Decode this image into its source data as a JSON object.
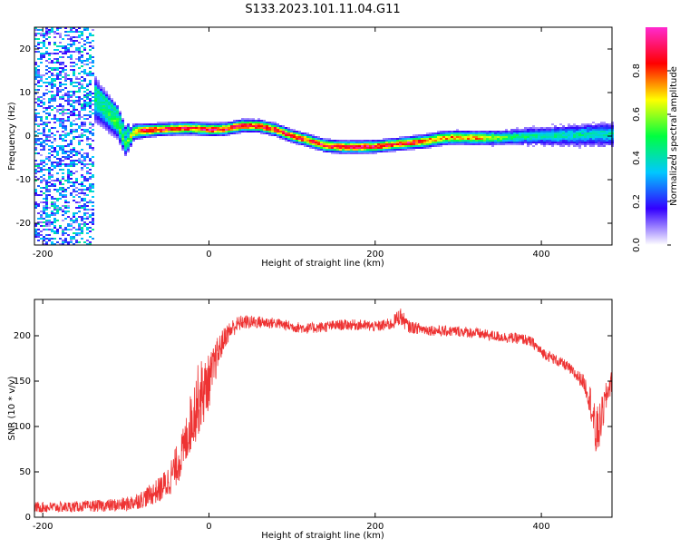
{
  "title": "S133.2023.101.11.04.G11",
  "chart_data": [
    {
      "type": "heatmap",
      "xlabel": "Height of straight line (km)",
      "ylabel": "Frequency (Hz)",
      "xlim": [
        -210,
        485
      ],
      "ylim": [
        -25,
        25
      ],
      "xticks": [
        -200,
        0,
        200,
        400
      ],
      "yticks": [
        -20,
        -10,
        0,
        10,
        20
      ],
      "colorbar": {
        "label": "Normalized spectral amplitude",
        "range": [
          0,
          1
        ],
        "ticks": [
          "0.0",
          "0.2",
          "0.4",
          "0.6",
          "0.8"
        ],
        "colors": [
          "#ffffff",
          "#3300ff",
          "#00c8ff",
          "#00ff40",
          "#ffff00",
          "#ff0000",
          "#ff2ad0"
        ]
      },
      "ridge": {
        "x": [
          -140,
          -130,
          -120,
          -110,
          -100,
          -90,
          -80,
          -60,
          -40,
          -20,
          0,
          20,
          40,
          60,
          80,
          100,
          120,
          140,
          160,
          180,
          200,
          220,
          240,
          260,
          280,
          300,
          320,
          340,
          360,
          380,
          400,
          420,
          440,
          460,
          480
        ],
        "y": [
          9,
          7,
          5,
          3,
          -2,
          1,
          1.2,
          1.5,
          1.7,
          1.8,
          1.5,
          1.6,
          2.4,
          2.3,
          1.5,
          0,
          -1,
          -2.2,
          -2.5,
          -2.5,
          -2.4,
          -2.0,
          -1.6,
          -1.2,
          -0.5,
          -0.3,
          -0.4,
          -0.4,
          -0.3,
          -0.1,
          0,
          0.1,
          0.2,
          0.3,
          0.4
        ],
        "amp": [
          0.45,
          0.45,
          0.5,
          0.55,
          0.5,
          0.7,
          0.9,
          0.9,
          0.85,
          0.85,
          0.9,
          0.9,
          0.9,
          0.9,
          0.88,
          0.85,
          0.85,
          0.9,
          0.92,
          0.92,
          0.9,
          0.85,
          0.9,
          0.8,
          0.75,
          0.75,
          0.75,
          0.6,
          0.5,
          0.45,
          0.4,
          0.4,
          0.4,
          0.4,
          0.4
        ],
        "width": [
          4,
          3.5,
          3,
          2.5,
          2,
          1.3,
          1.1,
          1.0,
          1.0,
          1.0,
          1.0,
          1.0,
          1.0,
          1.0,
          1.0,
          1.0,
          1.0,
          1.0,
          1.0,
          1.0,
          1.0,
          1.0,
          1.0,
          1.1,
          1.1,
          1.1,
          1.1,
          1.2,
          1.2,
          1.4,
          1.5,
          1.7,
          1.8,
          1.9,
          2.0
        ]
      },
      "noise_band": {
        "x_range": [
          -210,
          -138
        ],
        "amp": 0.35
      }
    },
    {
      "type": "line",
      "xlabel": "Height of straight line (km)",
      "ylabel": "SNR (10 * v/v)",
      "xlim": [
        -210,
        485
      ],
      "ylim": [
        0,
        240
      ],
      "xticks": [
        -200,
        0,
        200,
        400
      ],
      "yticks": [
        0,
        50,
        100,
        150,
        200
      ],
      "color": "#ee3333",
      "series": [
        {
          "x": [
            -210,
            -180,
            -150,
            -120,
            -100,
            -90,
            -80,
            -70,
            -60,
            -50,
            -40,
            -30,
            -25,
            -20,
            -15,
            -10,
            -5,
            0,
            5,
            10,
            15,
            20,
            30,
            40,
            60,
            80,
            100,
            120,
            140,
            160,
            180,
            200,
            220,
            230,
            240,
            260,
            280,
            300,
            320,
            340,
            360,
            380,
            390,
            400,
            410,
            420,
            430,
            440,
            450,
            455,
            460,
            465,
            470,
            475,
            480,
            485
          ],
          "y": [
            11,
            11,
            12,
            13,
            14,
            17,
            20,
            25,
            30,
            38,
            55,
            75,
            95,
            110,
            125,
            135,
            140,
            150,
            162,
            178,
            190,
            200,
            210,
            215,
            215,
            214,
            210,
            208,
            210,
            212,
            212,
            210,
            213,
            222,
            210,
            207,
            205,
            205,
            203,
            200,
            198,
            196,
            192,
            182,
            177,
            172,
            167,
            158,
            150,
            140,
            125,
            90,
            100,
            120,
            140,
            150
          ],
          "noise": [
            6,
            6,
            6,
            7,
            8,
            9,
            10,
            12,
            14,
            18,
            22,
            26,
            30,
            35,
            40,
            40,
            35,
            30,
            25,
            20,
            15,
            12,
            10,
            8,
            7,
            6,
            6,
            6,
            6,
            6,
            6,
            6,
            7,
            10,
            7,
            6,
            6,
            6,
            6,
            6,
            6,
            6,
            6,
            6,
            6,
            6,
            6,
            7,
            8,
            12,
            20,
            30,
            25,
            20,
            15,
            12
          ]
        }
      ]
    }
  ]
}
